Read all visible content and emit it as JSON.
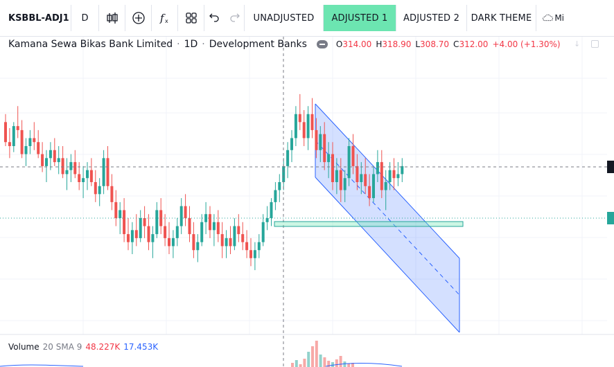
{
  "toolbar": {
    "symbol": "KSBBL-ADJ1",
    "interval": "D",
    "buttons": {
      "unadjusted": "UNADJUSTED",
      "adjusted1": "ADJUSTED 1",
      "adjusted2": "ADJUSTED 2",
      "dark_theme": "DARK THEME"
    },
    "more_label": "Mi"
  },
  "legend": {
    "title": "Kamana Sewa Bikas Bank Limited",
    "interval": "1D",
    "exchange": "Development Banks",
    "o_label": "O",
    "o_value": "314.00",
    "h_label": "H",
    "h_value": "318.90",
    "l_label": "L",
    "l_value": "308.70",
    "c_label": "C",
    "c_value": "312.00",
    "change": "+4.00 (+1.30%)"
  },
  "volume_legend": {
    "label": "Volume",
    "params": "20 SMA 9",
    "value1": "48.227K",
    "value2": "17.453K"
  },
  "colors": {
    "up": "#26a69a",
    "down": "#ef5350",
    "accent": "#6ce5b1",
    "channel": "#2962ff"
  },
  "chart_data": {
    "type": "candlestick",
    "ohlc": [
      [
        330,
        334,
        318,
        320
      ],
      [
        320,
        327,
        312,
        318
      ],
      [
        318,
        330,
        315,
        328
      ],
      [
        328,
        338,
        322,
        326
      ],
      [
        326,
        331,
        312,
        314
      ],
      [
        314,
        322,
        308,
        318
      ],
      [
        318,
        326,
        314,
        322
      ],
      [
        322,
        330,
        316,
        320
      ],
      [
        320,
        326,
        312,
        314
      ],
      [
        314,
        320,
        305,
        308
      ],
      [
        308,
        316,
        300,
        312
      ],
      [
        312,
        320,
        306,
        316
      ],
      [
        316,
        322,
        308,
        310
      ],
      [
        310,
        318,
        304,
        312
      ],
      [
        312,
        318,
        302,
        304
      ],
      [
        304,
        312,
        296,
        306
      ],
      [
        306,
        314,
        300,
        310
      ],
      [
        310,
        316,
        302,
        304
      ],
      [
        304,
        310,
        296,
        300
      ],
      [
        300,
        308,
        292,
        302
      ],
      [
        302,
        310,
        296,
        306
      ],
      [
        306,
        312,
        298,
        300
      ],
      [
        300,
        306,
        290,
        294
      ],
      [
        294,
        302,
        288,
        298
      ],
      [
        298,
        316,
        294,
        312
      ],
      [
        312,
        318,
        296,
        298
      ],
      [
        298,
        304,
        286,
        290
      ],
      [
        290,
        296,
        278,
        282
      ],
      [
        282,
        290,
        274,
        286
      ],
      [
        286,
        292,
        270,
        274
      ],
      [
        274,
        282,
        266,
        270
      ],
      [
        270,
        280,
        264,
        276
      ],
      [
        276,
        284,
        268,
        272
      ],
      [
        272,
        286,
        270,
        282
      ],
      [
        282,
        288,
        272,
        278
      ],
      [
        278,
        284,
        266,
        270
      ],
      [
        270,
        278,
        262,
        274
      ],
      [
        274,
        290,
        272,
        286
      ],
      [
        286,
        292,
        274,
        278
      ],
      [
        278,
        284,
        268,
        272
      ],
      [
        272,
        280,
        264,
        268
      ],
      [
        268,
        276,
        262,
        272
      ],
      [
        272,
        282,
        268,
        278
      ],
      [
        278,
        292,
        274,
        288
      ],
      [
        288,
        294,
        278,
        282
      ],
      [
        282,
        288,
        270,
        274
      ],
      [
        274,
        280,
        262,
        266
      ],
      [
        266,
        274,
        260,
        270
      ],
      [
        270,
        284,
        268,
        280
      ],
      [
        280,
        290,
        274,
        284
      ],
      [
        284,
        288,
        272,
        276
      ],
      [
        276,
        284,
        268,
        280
      ],
      [
        280,
        286,
        270,
        274
      ],
      [
        274,
        280,
        262,
        268
      ],
      [
        268,
        276,
        262,
        272
      ],
      [
        272,
        278,
        264,
        268
      ],
      [
        268,
        282,
        266,
        278
      ],
      [
        278,
        284,
        270,
        274
      ],
      [
        274,
        280,
        266,
        270
      ],
      [
        270,
        276,
        262,
        266
      ],
      [
        266,
        272,
        258,
        262
      ],
      [
        262,
        270,
        256,
        266
      ],
      [
        266,
        274,
        262,
        270
      ],
      [
        270,
        284,
        268,
        280
      ],
      [
        280,
        288,
        276,
        282
      ],
      [
        282,
        292,
        278,
        290
      ],
      [
        290,
        300,
        286,
        296
      ],
      [
        296,
        304,
        290,
        300
      ],
      [
        300,
        312,
        296,
        308
      ],
      [
        308,
        320,
        302,
        316
      ],
      [
        316,
        326,
        310,
        322
      ],
      [
        322,
        338,
        318,
        334
      ],
      [
        334,
        344,
        326,
        330
      ],
      [
        330,
        336,
        318,
        322
      ],
      [
        322,
        338,
        316,
        334
      ],
      [
        334,
        342,
        322,
        326
      ],
      [
        326,
        332,
        312,
        316
      ],
      [
        316,
        328,
        310,
        324
      ],
      [
        324,
        330,
        306,
        310
      ],
      [
        310,
        320,
        302,
        314
      ],
      [
        314,
        320,
        296,
        300
      ],
      [
        300,
        312,
        294,
        306
      ],
      [
        306,
        312,
        290,
        296
      ],
      [
        296,
        306,
        290,
        302
      ],
      [
        302,
        322,
        298,
        318
      ],
      [
        318,
        324,
        304,
        308
      ],
      [
        308,
        314,
        296,
        300
      ],
      [
        300,
        310,
        294,
        304
      ],
      [
        304,
        312,
        294,
        298
      ],
      [
        298,
        304,
        288,
        292
      ],
      [
        292,
        308,
        290,
        304
      ],
      [
        304,
        316,
        300,
        310
      ],
      [
        310,
        316,
        292,
        296
      ],
      [
        296,
        306,
        286,
        300
      ],
      [
        300,
        310,
        296,
        306
      ],
      [
        306,
        312,
        296,
        302
      ],
      [
        302,
        310,
        298,
        304
      ],
      [
        304,
        312,
        300,
        308
      ]
    ],
    "volume_sma_value": "17.453K",
    "volume_value": "48.227K"
  }
}
